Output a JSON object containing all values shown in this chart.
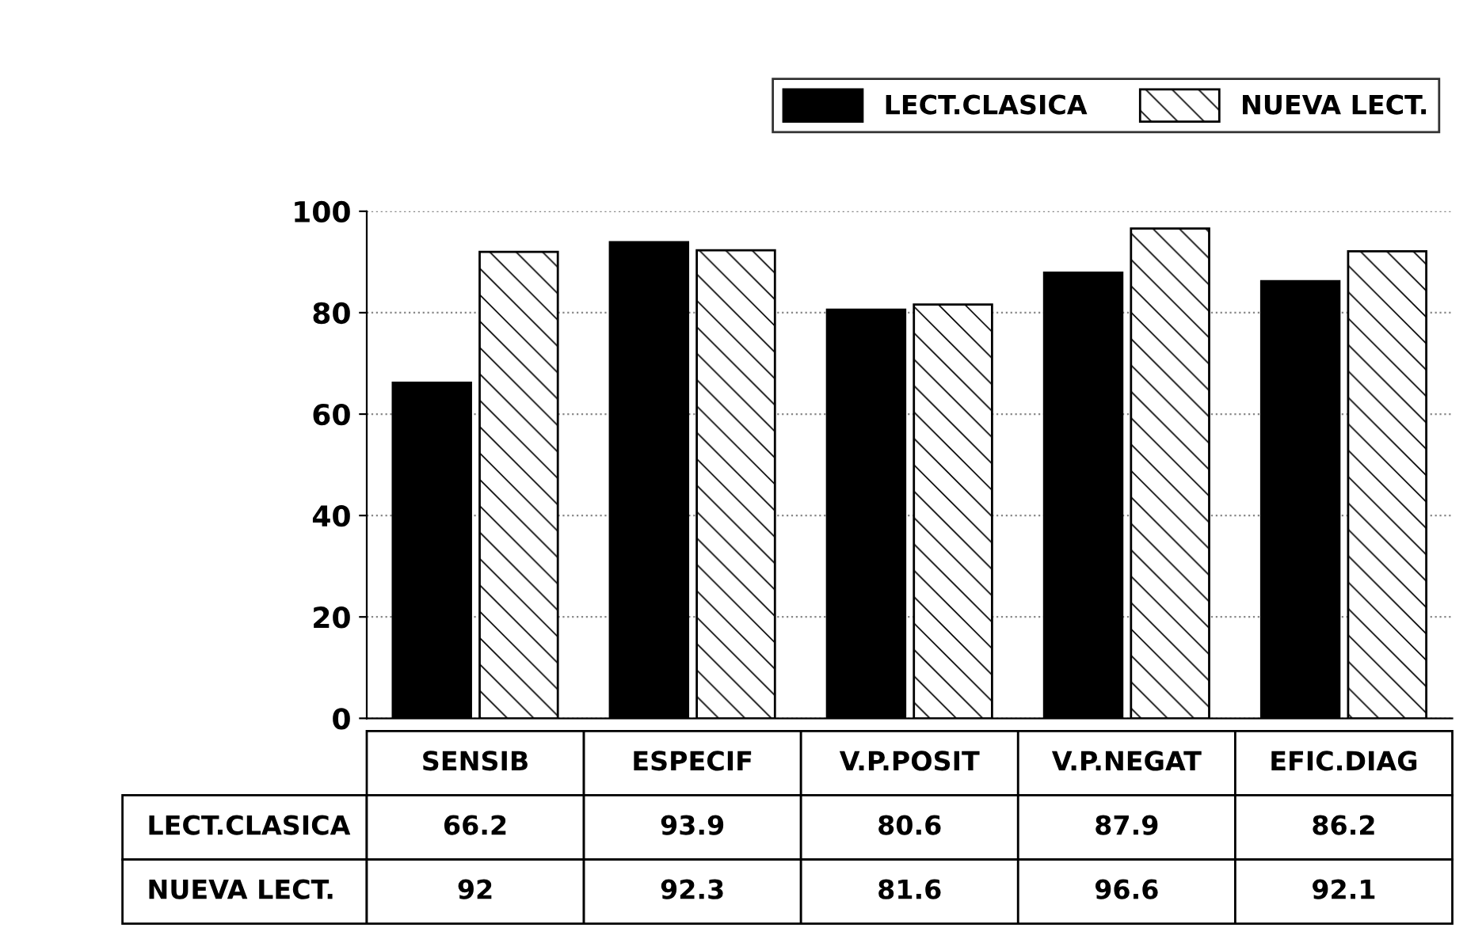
{
  "chart_data": {
    "type": "bar",
    "categories": [
      "SENSIB",
      "ESPECIF",
      "V.P.POSIT",
      "V.P.NEGAT",
      "EFIC.DIAG"
    ],
    "series": [
      {
        "name": "LECT.CLASICA",
        "color": "#000000",
        "values": [
          66.2,
          93.9,
          80.6,
          87.9,
          86.2
        ]
      },
      {
        "name": "NUEVA LECT.",
        "color": "#ffffff",
        "values": [
          92,
          92.3,
          81.6,
          96.6,
          92.1
        ]
      }
    ],
    "ylim": [
      0,
      100
    ],
    "yticks": [
      0,
      20,
      40,
      60,
      80,
      100
    ],
    "grid": "y",
    "legend": "top right",
    "data_labels": true
  }
}
